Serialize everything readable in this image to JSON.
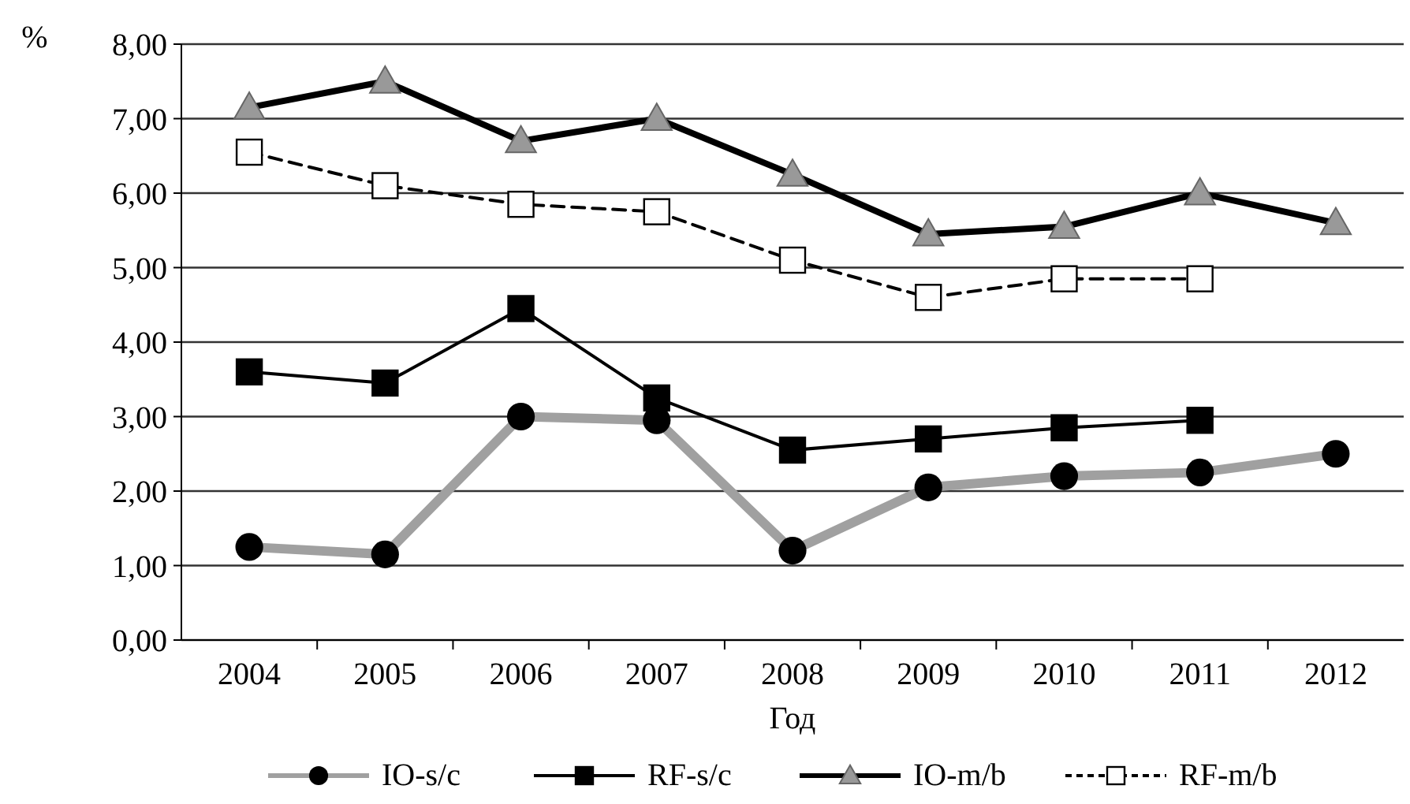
{
  "chart_data": {
    "type": "line",
    "xlabel": "Год",
    "ylabel": "%",
    "categories": [
      "2004",
      "2005",
      "2006",
      "2007",
      "2008",
      "2009",
      "2010",
      "2011",
      "2012"
    ],
    "ylim": [
      0,
      8
    ],
    "yticks": [
      {
        "value": 0,
        "label": "0,00"
      },
      {
        "value": 1,
        "label": "1,00"
      },
      {
        "value": 2,
        "label": "2,00"
      },
      {
        "value": 3,
        "label": "3,00"
      },
      {
        "value": 4,
        "label": "4,00"
      },
      {
        "value": 5,
        "label": "5,00"
      },
      {
        "value": 6,
        "label": "6,00"
      },
      {
        "value": 7,
        "label": "7,00"
      },
      {
        "value": 8,
        "label": "8,00"
      }
    ],
    "grid": "y",
    "legend": "bottom",
    "series": [
      {
        "name": "IO-s/c",
        "color": "#a0a0a0",
        "marker": "circle",
        "line_style": "solid",
        "values": [
          1.25,
          1.15,
          3.0,
          2.95,
          1.2,
          2.05,
          2.2,
          2.25,
          2.5
        ]
      },
      {
        "name": "RF-s/c",
        "color": "#000000",
        "marker": "square",
        "line_style": "solid",
        "values": [
          3.6,
          3.45,
          4.45,
          3.25,
          2.55,
          2.7,
          2.85,
          2.95,
          null
        ]
      },
      {
        "name": "IO-m/b",
        "color": "#000000",
        "marker": "triangle",
        "line_style": "solid",
        "values": [
          7.15,
          7.5,
          6.7,
          7.0,
          6.25,
          5.45,
          5.55,
          6.0,
          5.6
        ]
      },
      {
        "name": "RF-m/b",
        "color": "#000000",
        "marker": "square",
        "line_style": "dashed",
        "values": [
          6.55,
          6.1,
          5.85,
          5.75,
          5.1,
          4.6,
          4.85,
          4.85,
          null
        ]
      }
    ]
  }
}
